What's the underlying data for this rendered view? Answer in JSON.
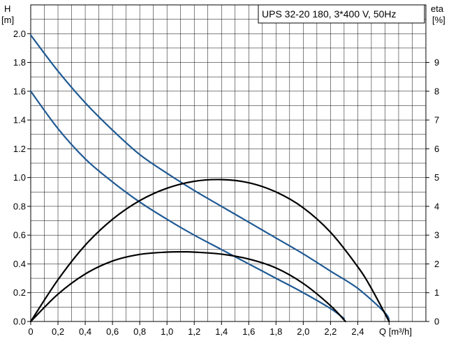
{
  "chart_data": {
    "type": "line",
    "title": "UPS 32-20 180, 3*400 V, 50Hz",
    "ylabel_name": "H",
    "ylabel_unit": "[m]",
    "y2label_name": "eta",
    "y2label_unit": "[%]",
    "xlabel_tail": "Q [m³/h]",
    "xlim": [
      0,
      2.9
    ],
    "ylim": [
      0,
      2.2
    ],
    "y2lim": [
      0,
      11
    ],
    "grid": true,
    "x_ticks": [
      "0",
      "0,2",
      "0,4",
      "0,6",
      "0,8",
      "1,0",
      "1,2",
      "1,4",
      "1,6",
      "1,8",
      "2,0",
      "2,2",
      "2,4"
    ],
    "x_tick_values": [
      0,
      0.2,
      0.4,
      0.6,
      0.8,
      1.0,
      1.2,
      1.4,
      1.6,
      1.8,
      2.0,
      2.2,
      2.4
    ],
    "y_ticks": [
      "0.0",
      "0.2",
      "0.4",
      "0.6",
      "0.8",
      "1.0",
      "1.2",
      "1.4",
      "1.6",
      "1.8",
      "2.0"
    ],
    "y_tick_values": [
      0,
      0.2,
      0.4,
      0.6,
      0.8,
      1.0,
      1.2,
      1.4,
      1.6,
      1.8,
      2.0
    ],
    "y2_ticks": [
      "0",
      "1",
      "2",
      "3",
      "4",
      "5",
      "6",
      "7",
      "8",
      "9"
    ],
    "y2_tick_values": [
      0,
      1,
      2,
      3,
      4,
      5,
      6,
      7,
      8,
      9
    ],
    "series": [
      {
        "color": "#1f5a94",
        "axis": "left",
        "x": [
          0,
          0.2,
          0.4,
          0.6,
          0.8,
          1.0,
          1.2,
          1.4,
          1.6,
          1.8,
          2.0,
          2.2,
          2.4,
          2.6,
          2.63
        ],
        "y": [
          1.99,
          1.74,
          1.52,
          1.33,
          1.16,
          1.03,
          0.91,
          0.8,
          0.69,
          0.58,
          0.47,
          0.35,
          0.23,
          0.06,
          0.0
        ]
      },
      {
        "color": "#1f5a94",
        "axis": "left",
        "x": [
          0,
          0.2,
          0.4,
          0.6,
          0.8,
          1.0,
          1.2,
          1.4,
          1.6,
          1.8,
          2.0,
          2.2,
          2.3
        ],
        "y": [
          1.6,
          1.34,
          1.13,
          0.97,
          0.83,
          0.71,
          0.6,
          0.5,
          0.4,
          0.3,
          0.2,
          0.09,
          0.02
        ]
      },
      {
        "color": "#000000",
        "axis": "right",
        "x": [
          0,
          0.2,
          0.4,
          0.6,
          0.8,
          1.0,
          1.2,
          1.4,
          1.6,
          1.8,
          2.0,
          2.2,
          2.4,
          2.5,
          2.63
        ],
        "y": [
          0,
          1.45,
          2.65,
          3.55,
          4.2,
          4.63,
          4.87,
          4.93,
          4.82,
          4.5,
          3.95,
          3.1,
          1.9,
          1.15,
          0
        ]
      },
      {
        "color": "#000000",
        "axis": "right",
        "x": [
          0,
          0.2,
          0.4,
          0.6,
          0.8,
          1.0,
          1.13,
          1.2,
          1.4,
          1.6,
          1.8,
          2.0,
          2.2,
          2.31
        ],
        "y": [
          0,
          0.95,
          1.65,
          2.1,
          2.33,
          2.41,
          2.42,
          2.41,
          2.34,
          2.17,
          1.86,
          1.32,
          0.55,
          0
        ]
      }
    ]
  }
}
